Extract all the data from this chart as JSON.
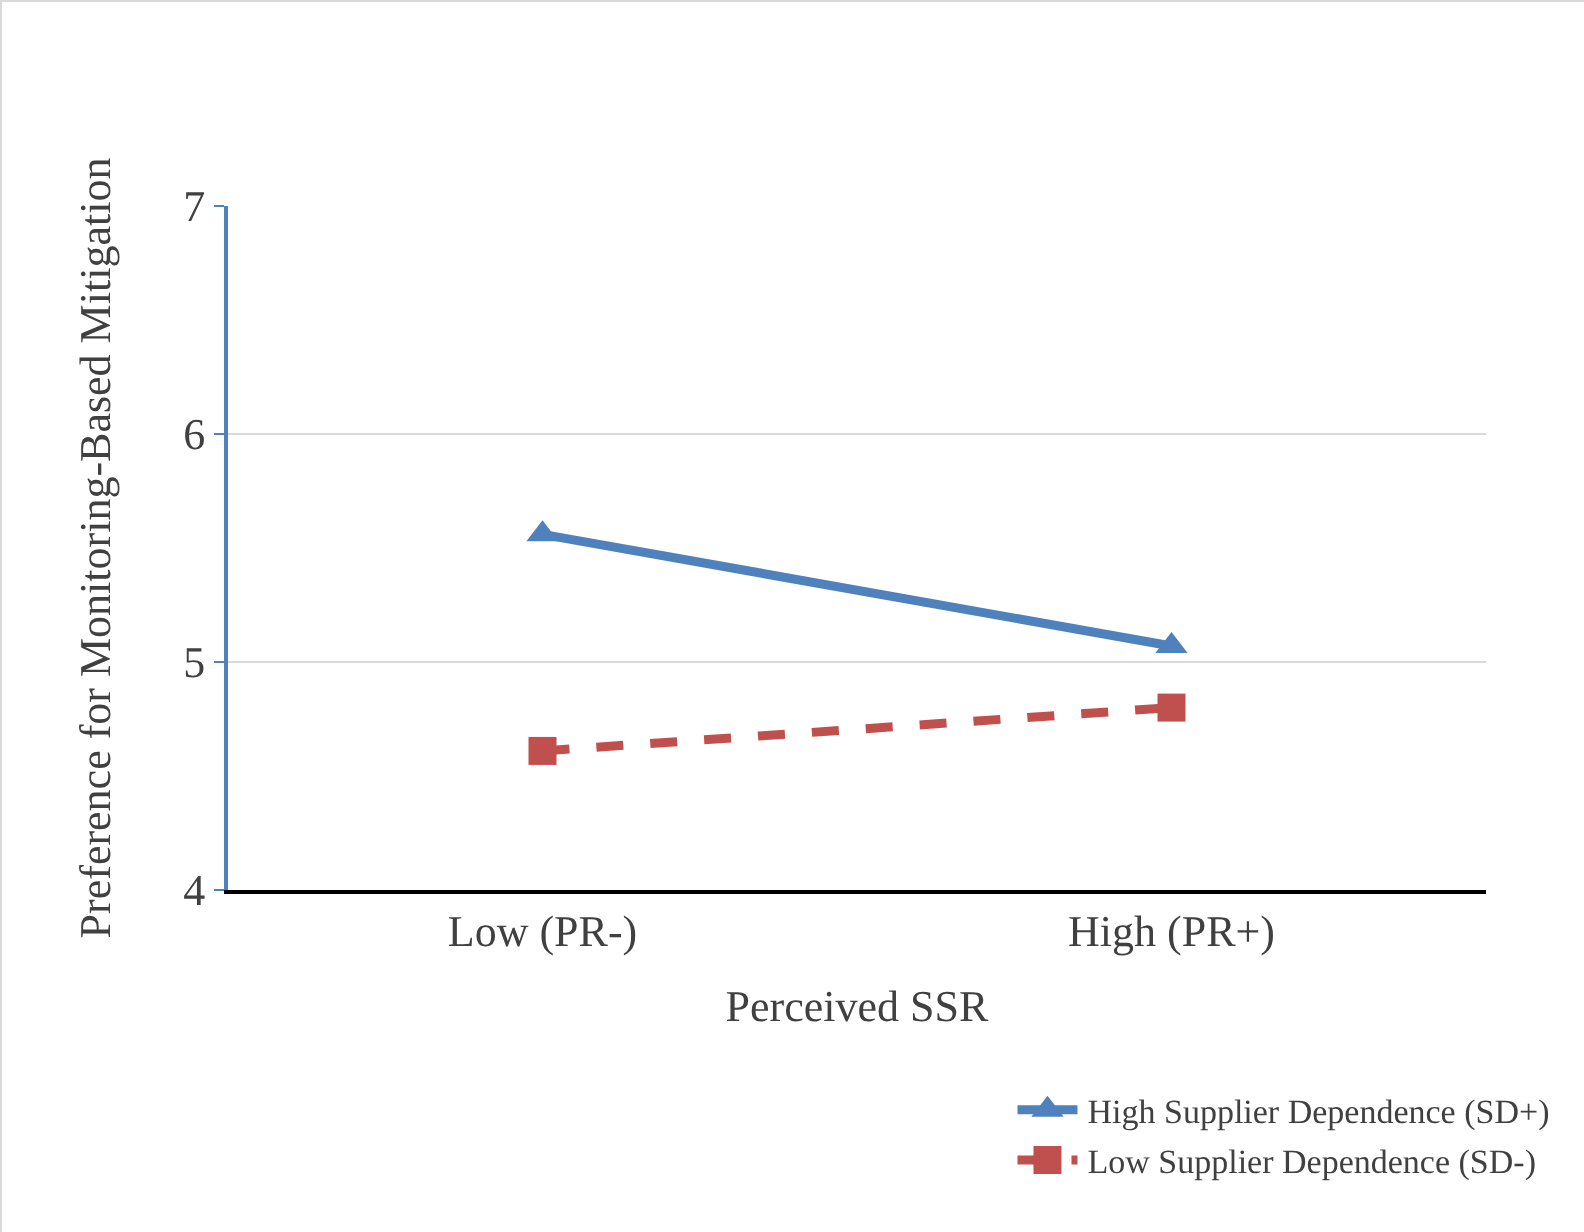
{
  "chart_data": {
    "type": "line",
    "xlabel": "Perceived SSR",
    "ylabel": "Preference for Monitoring-Based Mitigation",
    "categories": [
      "Low (PR-)",
      "High (PR+)"
    ],
    "series": [
      {
        "name": "High Supplier Dependence (SD+)",
        "color": "#4f81bd",
        "values": [
          5.56,
          5.07
        ],
        "marker": "triangle",
        "line_style": "solid"
      },
      {
        "name": "Low Supplier Dependence (SD-)",
        "color": "#c0504d",
        "values": [
          4.61,
          4.8
        ],
        "marker": "square",
        "line_style": "dashed"
      }
    ],
    "ylim": [
      4,
      7
    ],
    "yticks": [
      4,
      5,
      6,
      7
    ],
    "grid": "y",
    "legend": "bottom right"
  }
}
